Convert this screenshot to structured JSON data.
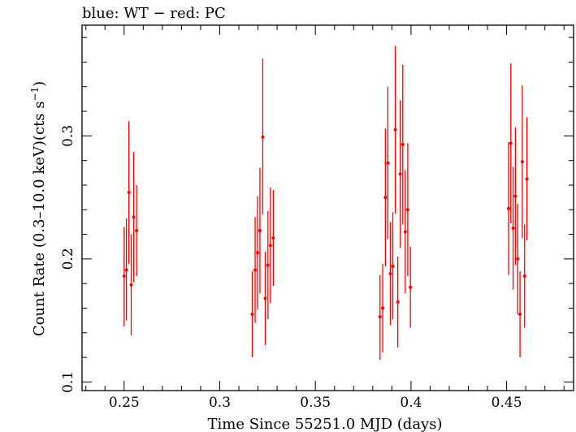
{
  "chart_data": {
    "type": "scatter",
    "title": "blue: WT − red: PC",
    "xlabel": "Time Since 55251.0 MJD (days)",
    "ylabel_prefix": "Count Rate (0.3–10.0 keV)(cts s",
    "ylabel_sup": "−1",
    "ylabel_suffix": ")",
    "xlim": [
      0.228,
      0.485
    ],
    "ylim": [
      0.093,
      0.39
    ],
    "x_ticks": [
      0.25,
      0.3,
      0.35,
      0.4,
      0.45
    ],
    "x_tick_labels": [
      "0.25",
      "0.3",
      "0.35",
      "0.4",
      "0.45"
    ],
    "y_ticks": [
      0.1,
      0.2,
      0.3
    ],
    "y_tick_labels": [
      "0.1",
      "0.2",
      "0.3"
    ],
    "grid": false,
    "series": [
      {
        "color": "#ff0000",
        "points": [
          {
            "x": 0.25,
            "y": 0.186,
            "lo": 0.145,
            "hi": 0.226
          },
          {
            "x": 0.2512,
            "y": 0.191,
            "lo": 0.15,
            "hi": 0.233
          },
          {
            "x": 0.2525,
            "y": 0.254,
            "lo": 0.196,
            "hi": 0.312
          },
          {
            "x": 0.2537,
            "y": 0.179,
            "lo": 0.138,
            "hi": 0.22
          },
          {
            "x": 0.255,
            "y": 0.234,
            "lo": 0.181,
            "hi": 0.287
          },
          {
            "x": 0.2565,
            "y": 0.223,
            "lo": 0.186,
            "hi": 0.26
          },
          {
            "x": 0.317,
            "y": 0.155,
            "lo": 0.12,
            "hi": 0.19
          },
          {
            "x": 0.3185,
            "y": 0.191,
            "lo": 0.148,
            "hi": 0.234
          },
          {
            "x": 0.3198,
            "y": 0.205,
            "lo": 0.159,
            "hi": 0.251
          },
          {
            "x": 0.321,
            "y": 0.223,
            "lo": 0.172,
            "hi": 0.274
          },
          {
            "x": 0.3225,
            "y": 0.299,
            "lo": 0.236,
            "hi": 0.363
          },
          {
            "x": 0.3238,
            "y": 0.168,
            "lo": 0.13,
            "hi": 0.206
          },
          {
            "x": 0.3252,
            "y": 0.195,
            "lo": 0.151,
            "hi": 0.239
          },
          {
            "x": 0.3265,
            "y": 0.211,
            "lo": 0.164,
            "hi": 0.258
          },
          {
            "x": 0.328,
            "y": 0.217,
            "lo": 0.178,
            "hi": 0.256
          },
          {
            "x": 0.3838,
            "y": 0.153,
            "lo": 0.118,
            "hi": 0.187
          },
          {
            "x": 0.3852,
            "y": 0.16,
            "lo": 0.124,
            "hi": 0.196
          },
          {
            "x": 0.3866,
            "y": 0.25,
            "lo": 0.194,
            "hi": 0.306
          },
          {
            "x": 0.3879,
            "y": 0.278,
            "lo": 0.216,
            "hi": 0.34
          },
          {
            "x": 0.3892,
            "y": 0.188,
            "lo": 0.146,
            "hi": 0.23
          },
          {
            "x": 0.3905,
            "y": 0.194,
            "lo": 0.151,
            "hi": 0.238
          },
          {
            "x": 0.3918,
            "y": 0.305,
            "lo": 0.237,
            "hi": 0.373
          },
          {
            "x": 0.3931,
            "y": 0.165,
            "lo": 0.128,
            "hi": 0.202
          },
          {
            "x": 0.3944,
            "y": 0.269,
            "lo": 0.209,
            "hi": 0.329
          },
          {
            "x": 0.3957,
            "y": 0.293,
            "lo": 0.228,
            "hi": 0.358
          },
          {
            "x": 0.397,
            "y": 0.222,
            "lo": 0.172,
            "hi": 0.272
          },
          {
            "x": 0.3983,
            "y": 0.24,
            "lo": 0.186,
            "hi": 0.294
          },
          {
            "x": 0.3997,
            "y": 0.177,
            "lo": 0.144,
            "hi": 0.21
          },
          {
            "x": 0.451,
            "y": 0.241,
            "lo": 0.187,
            "hi": 0.295
          },
          {
            "x": 0.4522,
            "y": 0.294,
            "lo": 0.229,
            "hi": 0.359
          },
          {
            "x": 0.4534,
            "y": 0.225,
            "lo": 0.175,
            "hi": 0.275
          },
          {
            "x": 0.4546,
            "y": 0.251,
            "lo": 0.195,
            "hi": 0.307
          },
          {
            "x": 0.4558,
            "y": 0.2,
            "lo": 0.155,
            "hi": 0.245
          },
          {
            "x": 0.457,
            "y": 0.155,
            "lo": 0.12,
            "hi": 0.19
          },
          {
            "x": 0.4582,
            "y": 0.279,
            "lo": 0.217,
            "hi": 0.341
          },
          {
            "x": 0.4594,
            "y": 0.186,
            "lo": 0.144,
            "hi": 0.228
          },
          {
            "x": 0.4606,
            "y": 0.265,
            "lo": 0.215,
            "hi": 0.315
          }
        ]
      }
    ]
  }
}
